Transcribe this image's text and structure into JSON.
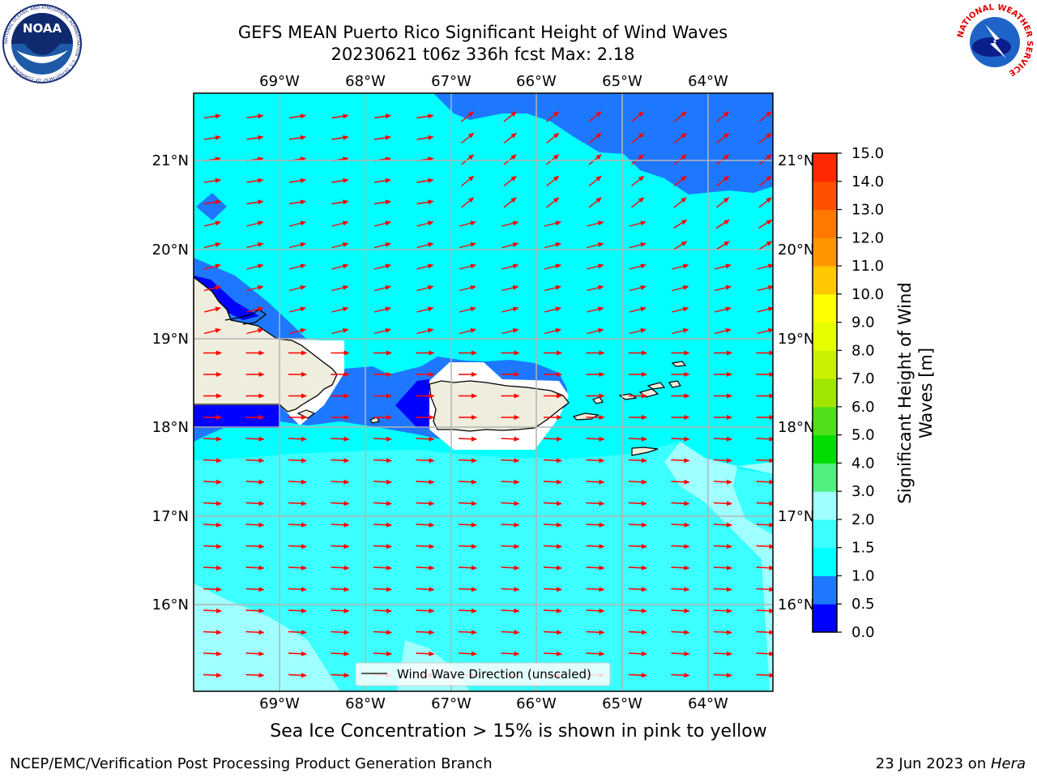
{
  "header": {
    "title_line1": "GEFS MEAN Puerto Rico Significant Height of Wind Waves",
    "title_line2": "20230621 t06z 336h fcst   Max: 2.18"
  },
  "map": {
    "lon_labels": [
      "69°W",
      "68°W",
      "67°W",
      "66°W",
      "65°W",
      "64°W"
    ],
    "lat_labels": [
      "21°N",
      "20°N",
      "19°N",
      "18°N",
      "17°N",
      "16°N"
    ],
    "legend_label": "Wind Wave Direction (unscaled)",
    "arrow_color": "#ff0000",
    "land_color": "#efeddd",
    "ocean_fill": "#00ffff"
  },
  "colorbar": {
    "label_line1": "Significant Height of Wind",
    "label_line2": "Waves [m]",
    "ticks": [
      "0.0",
      "0.5",
      "1.0",
      "1.5",
      "2.0",
      "3.0",
      "4.0",
      "5.0",
      "6.0",
      "7.0",
      "8.0",
      "9.0",
      "10.0",
      "11.0",
      "12.0",
      "13.0",
      "14.0",
      "15.0"
    ],
    "colors": [
      "#0000ff",
      "#1e78ff",
      "#00ffff",
      "#3cffff",
      "#a0ffff",
      "#50f080",
      "#00dc00",
      "#50e01a",
      "#a0e600",
      "#c8f000",
      "#e6ff00",
      "#ffff00",
      "#ffc800",
      "#ff9600",
      "#ff7800",
      "#ff5000",
      "#ff2800"
    ]
  },
  "caption": "Sea Ice Concentration > 15% is shown in pink to yellow",
  "footer": {
    "left": "NCEP/EMC/Verification Post Processing Product Generation Branch",
    "right_prefix": "23 Jun 2023 on ",
    "right_italic": "Hera"
  },
  "logos": {
    "noaa_text": "NOAA",
    "noaa_ring": "NATIONAL OCEANIC AND ATMOSPHERIC ADMINISTRATION · U.S. DEPARTMENT OF COMMERCE",
    "nws_ring": "NATIONAL WEATHER SERVICE"
  }
}
